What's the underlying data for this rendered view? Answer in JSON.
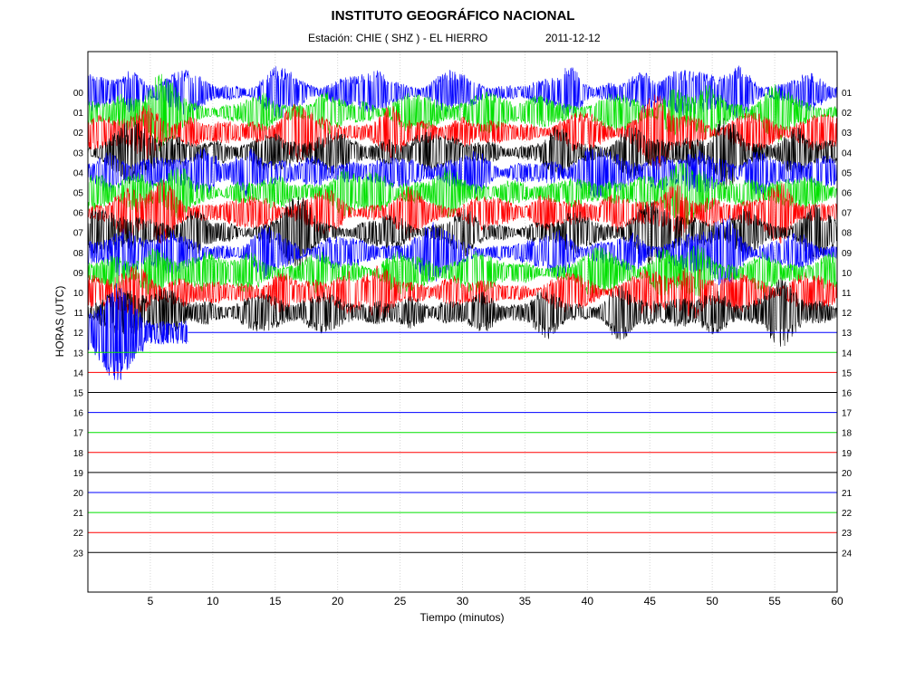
{
  "header": {
    "title": "INSTITUTO GEOGRÁFICO NACIONAL",
    "station": "Estación:  CHIE ( SHZ ) - EL HIERRO",
    "date": "2011-12-12"
  },
  "chart_data": {
    "type": "helicorder",
    "xlabel": "Tiempo (minutos)",
    "ylabel": "HORAS (UTC)",
    "xlim": [
      0,
      60
    ],
    "x_ticks": [
      5,
      10,
      15,
      20,
      25,
      30,
      35,
      40,
      45,
      50,
      55,
      60
    ],
    "left_hour_labels": [
      "00",
      "01",
      "02",
      "03",
      "04",
      "05",
      "06",
      "07",
      "08",
      "09",
      "10",
      "11",
      "12",
      "13",
      "14",
      "15",
      "16",
      "17",
      "18",
      "19",
      "20",
      "21",
      "22",
      "23"
    ],
    "right_hour_labels": [
      "01",
      "02",
      "03",
      "04",
      "05",
      "06",
      "07",
      "08",
      "09",
      "10",
      "11",
      "12",
      "13",
      "14",
      "15",
      "16",
      "17",
      "18",
      "19",
      "20",
      "21",
      "22",
      "23",
      "24"
    ],
    "trace_color_cycle": [
      "#0000ff",
      "#00e000",
      "#ff0000",
      "#000000"
    ],
    "grid": "vertical dotted",
    "recorded_until": {
      "hour": "12",
      "minute": 8
    },
    "event_bursts_minutes": [
      2,
      4.5,
      7.5,
      14.5,
      19,
      25,
      30,
      38.5,
      43.5,
      47,
      49,
      53,
      57.5
    ]
  }
}
